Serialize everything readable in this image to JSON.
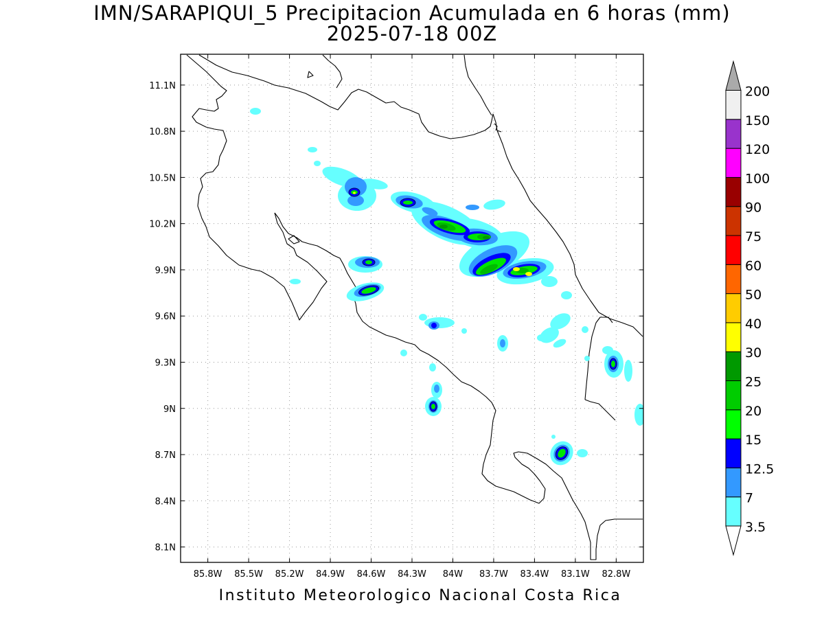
{
  "title": {
    "line1": "IMN/SARAPIQUI_5 Precipitacion Acumulada en 6 horas (mm)",
    "line2": "2025-07-18 00Z"
  },
  "footer": "Instituto Meteorologico Nacional Costa Rica",
  "map": {
    "lon_range": [
      -86.0,
      -82.6
    ],
    "lat_range": [
      8.0,
      11.3
    ],
    "lon_ticks": [
      {
        "value": -85.8,
        "label": "85.8W"
      },
      {
        "value": -85.5,
        "label": "85.5W"
      },
      {
        "value": -85.2,
        "label": "85.2W"
      },
      {
        "value": -84.9,
        "label": "84.9W"
      },
      {
        "value": -84.6,
        "label": "84.6W"
      },
      {
        "value": -84.3,
        "label": "84.3W"
      },
      {
        "value": -84.0,
        "label": "84W"
      },
      {
        "value": -83.7,
        "label": "83.7W"
      },
      {
        "value": -83.4,
        "label": "83.4W"
      },
      {
        "value": -83.1,
        "label": "83.1W"
      },
      {
        "value": -82.8,
        "label": "82.8W"
      }
    ],
    "lat_ticks": [
      {
        "value": 8.1,
        "label": "8.1N"
      },
      {
        "value": 8.4,
        "label": "8.4N"
      },
      {
        "value": 8.7,
        "label": "8.7N"
      },
      {
        "value": 9.0,
        "label": "9N"
      },
      {
        "value": 9.3,
        "label": "9.3N"
      },
      {
        "value": 9.6,
        "label": "9.6N"
      },
      {
        "value": 9.9,
        "label": "9.9N"
      },
      {
        "value": 10.2,
        "label": "10.2N"
      },
      {
        "value": 10.5,
        "label": "10.5N"
      },
      {
        "value": 10.8,
        "label": "10.8N"
      },
      {
        "value": 11.1,
        "label": "11.1N"
      }
    ],
    "grid": true,
    "grid_style": "dotted"
  },
  "colorbar": {
    "levels": [
      "3.5",
      "7",
      "12.5",
      "15",
      "20",
      "25",
      "30",
      "40",
      "50",
      "60",
      "75",
      "90",
      "100",
      "120",
      "150",
      "200"
    ],
    "colors": [
      "#66ffff",
      "#3399ff",
      "#0000ff",
      "#00ff00",
      "#00cc00",
      "#009900",
      "#ffff00",
      "#ffcc00",
      "#ff6600",
      "#ff0000",
      "#cc3300",
      "#990000",
      "#ff00ff",
      "#9933cc",
      "#f0f0f0",
      "#aaaaaa"
    ],
    "below_color": "#ffffff",
    "above_color": "#aaaaaa"
  }
}
